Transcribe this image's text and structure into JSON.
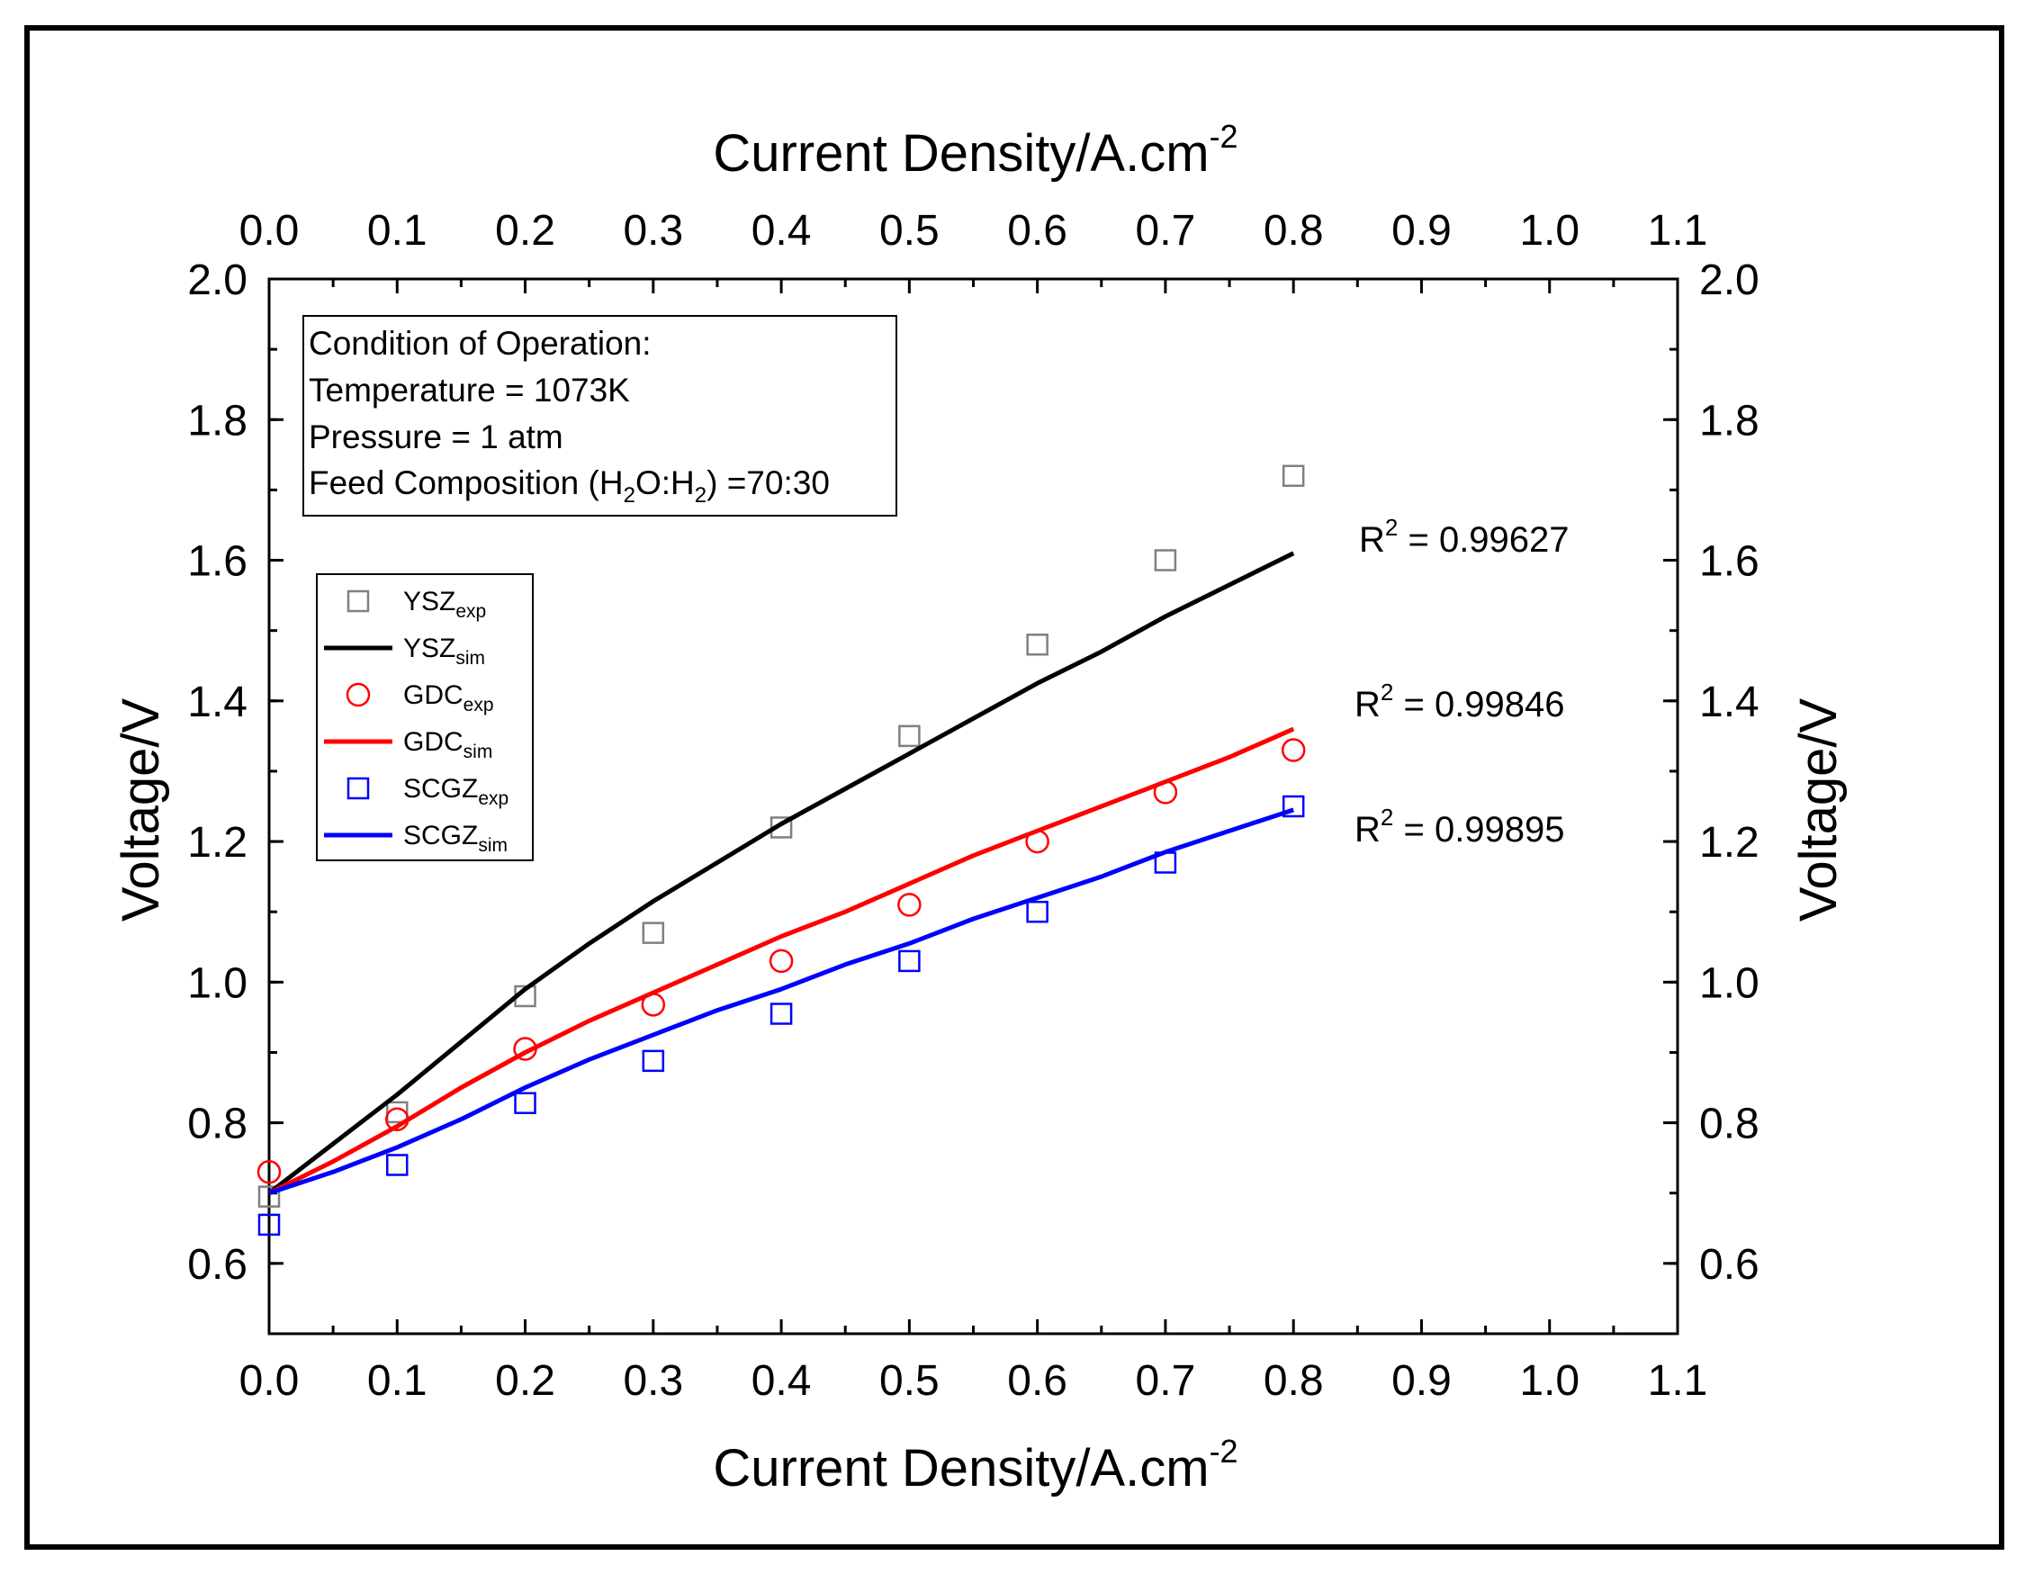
{
  "chart_data": {
    "type": "scatter",
    "xlabel_bottom": "Current Density/A.cm",
    "xlabel_top": "Current Density/A.cm",
    "xlabel_exponent": "-2",
    "ylabel_left": "Voltage/V",
    "ylabel_right": "Voltage/V",
    "xlim": [
      0.0,
      1.1
    ],
    "ylim": [
      0.5,
      2.0
    ],
    "x_ticks": [
      "0.0",
      "0.1",
      "0.2",
      "0.3",
      "0.4",
      "0.5",
      "0.6",
      "0.7",
      "0.8",
      "0.9",
      "1.0",
      "1.1"
    ],
    "y_ticks": [
      "0.6",
      "0.8",
      "1.0",
      "1.2",
      "1.4",
      "1.6",
      "1.8",
      "2.0"
    ],
    "series": [
      {
        "name": "YSZ",
        "sub": "exp",
        "kind": "square",
        "color": "#808080",
        "x": [
          0.0,
          0.1,
          0.2,
          0.3,
          0.4,
          0.5,
          0.6,
          0.7,
          0.8
        ],
        "y": [
          0.695,
          0.815,
          0.98,
          1.07,
          1.22,
          1.35,
          1.48,
          1.6,
          1.72
        ]
      },
      {
        "name": "YSZ",
        "sub": "sim",
        "kind": "line",
        "color": "#000000",
        "x": [
          0.0,
          0.05,
          0.1,
          0.15,
          0.2,
          0.25,
          0.3,
          0.35,
          0.4,
          0.45,
          0.5,
          0.55,
          0.6,
          0.65,
          0.7,
          0.75,
          0.8
        ],
        "y": [
          0.7,
          0.77,
          0.84,
          0.915,
          0.99,
          1.055,
          1.115,
          1.17,
          1.225,
          1.275,
          1.325,
          1.375,
          1.425,
          1.47,
          1.52,
          1.565,
          1.61
        ]
      },
      {
        "name": "GDC",
        "sub": "exp",
        "kind": "circle",
        "color": "#ff0000",
        "x": [
          0.0,
          0.1,
          0.2,
          0.3,
          0.4,
          0.5,
          0.6,
          0.7,
          0.8
        ],
        "y": [
          0.73,
          0.805,
          0.905,
          0.968,
          1.03,
          1.11,
          1.2,
          1.27,
          1.33
        ]
      },
      {
        "name": "GDC",
        "sub": "sim",
        "kind": "line",
        "color": "#ff0000",
        "x": [
          0.0,
          0.05,
          0.1,
          0.15,
          0.2,
          0.25,
          0.3,
          0.35,
          0.4,
          0.45,
          0.5,
          0.55,
          0.6,
          0.65,
          0.7,
          0.75,
          0.8
        ],
        "y": [
          0.7,
          0.745,
          0.795,
          0.85,
          0.9,
          0.945,
          0.985,
          1.025,
          1.065,
          1.1,
          1.14,
          1.18,
          1.215,
          1.25,
          1.285,
          1.32,
          1.36
        ]
      },
      {
        "name": "SCGZ",
        "sub": "exp",
        "kind": "square",
        "color": "#0000ff",
        "x": [
          0.0,
          0.1,
          0.2,
          0.3,
          0.4,
          0.5,
          0.6,
          0.7,
          0.8
        ],
        "y": [
          0.655,
          0.74,
          0.828,
          0.888,
          0.955,
          1.03,
          1.1,
          1.17,
          1.25
        ]
      },
      {
        "name": "SCGZ",
        "sub": "sim",
        "kind": "line",
        "color": "#0000ff",
        "x": [
          0.0,
          0.05,
          0.1,
          0.15,
          0.2,
          0.25,
          0.3,
          0.35,
          0.4,
          0.45,
          0.5,
          0.55,
          0.6,
          0.65,
          0.7,
          0.75,
          0.8
        ],
        "y": [
          0.7,
          0.73,
          0.765,
          0.805,
          0.85,
          0.89,
          0.925,
          0.96,
          0.99,
          1.025,
          1.055,
          1.09,
          1.12,
          1.15,
          1.185,
          1.215,
          1.245
        ]
      }
    ],
    "r2_annotations": [
      {
        "label": "R",
        "exponent": "2",
        "value": " = 0.99627",
        "x": 0.86,
        "y": 1.63
      },
      {
        "label": "R",
        "exponent": "2",
        "value": " = 0.99846",
        "x": 0.85,
        "y": 1.4
      },
      {
        "label": "R",
        "exponent": "2",
        "value": " = 0.99895",
        "x": 0.85,
        "y": 1.22
      }
    ],
    "info_box": {
      "line1": "Condition of Operation:",
      "line2": "Temperature = 1073K",
      "line3": "Pressure = 1 atm",
      "line4_pre": "Feed Composition (H",
      "line4_sub1": "2",
      "line4_mid": "O:H",
      "line4_sub2": "2",
      "line4_post": ") =70:30"
    }
  }
}
